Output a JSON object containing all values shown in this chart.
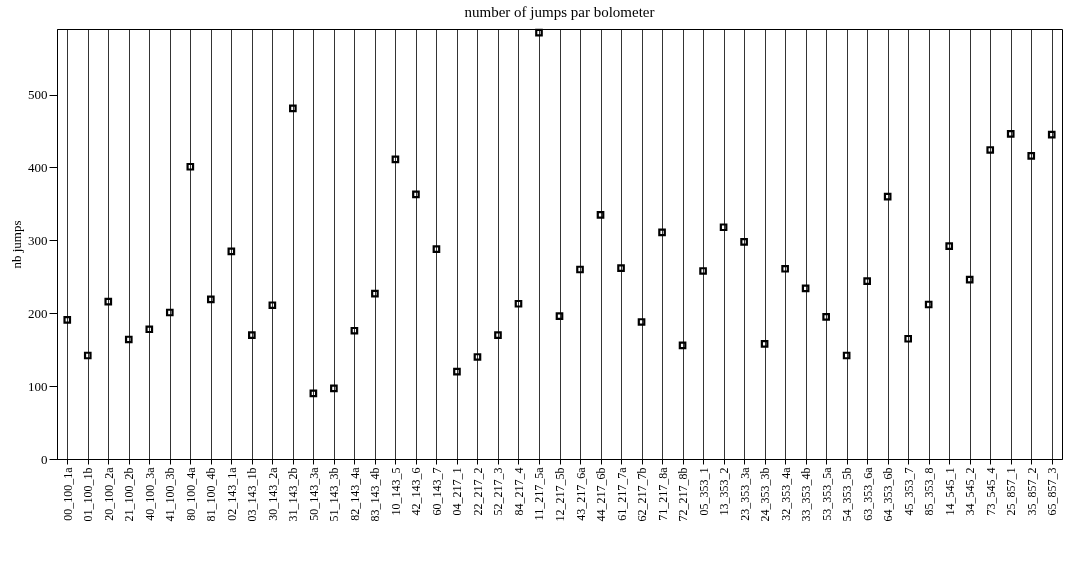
{
  "chart_data": {
    "type": "scatter",
    "title": "number of jumps par bolometer",
    "ylabel": "nb jumps",
    "categories": [
      "00_100_1a",
      "01_100_1b",
      "20_100_2a",
      "21_100_2b",
      "40_100_3a",
      "41_100_3b",
      "80_100_4a",
      "81_100_4b",
      "02_143_1a",
      "03_143_1b",
      "30_143_2a",
      "31_143_2b",
      "50_143_3a",
      "51_143_3b",
      "82_143_4a",
      "83_143_4b",
      "10_143_5",
      "42_143_6",
      "60_143_7",
      "04_217_1",
      "22_217_2",
      "52_217_3",
      "84_217_4",
      "11_217_5a",
      "12_217_5b",
      "43_217_6a",
      "44_217_6b",
      "61_217_7a",
      "62_217_7b",
      "71_217_8a",
      "72_217_8b",
      "05_353_1",
      "13_353_2",
      "23_353_3a",
      "24_353_3b",
      "32_353_4a",
      "33_353_4b",
      "53_353_5a",
      "54_353_5b",
      "63_353_6a",
      "64_353_6b",
      "45_353_7",
      "85_353_8",
      "14_545_1",
      "34_545_2",
      "73_545_4",
      "25_857_1",
      "35_857_2",
      "65_857_3"
    ],
    "values": [
      191,
      142,
      216,
      164,
      178,
      201,
      401,
      219,
      285,
      170,
      211,
      481,
      90,
      97,
      176,
      227,
      411,
      363,
      288,
      120,
      140,
      170,
      213,
      585,
      196,
      260,
      335,
      262,
      188,
      311,
      156,
      258,
      318,
      298,
      158,
      261,
      234,
      195,
      142,
      244,
      360,
      165,
      212,
      292,
      246,
      424,
      446,
      416,
      445
    ],
    "color": "#000000",
    "marker": "square",
    "grid": "x",
    "ylim": [
      0,
      590
    ],
    "yticks": [
      0,
      100,
      200,
      300,
      400,
      500
    ]
  }
}
